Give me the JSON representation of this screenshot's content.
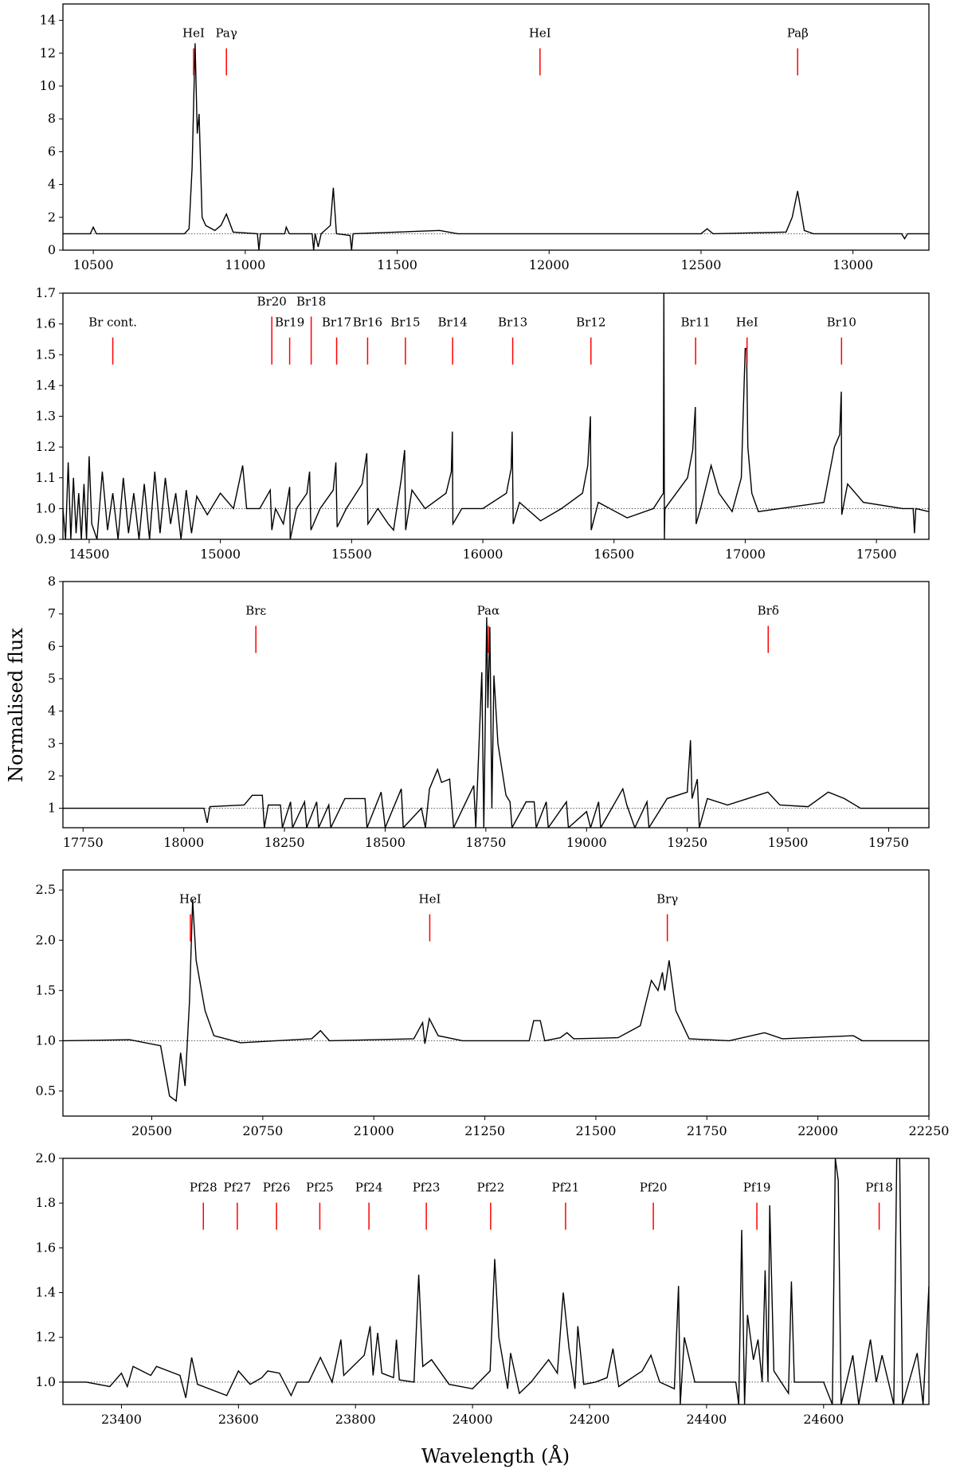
{
  "chart_data": {
    "type": "line",
    "ylabel": "Normalised flux",
    "xlabel": "Wavelength (Å)",
    "colors": {
      "spectrum": "#000000",
      "line_marker": "#ff0000",
      "continuum": "#555555"
    },
    "continuum_level": 1.0,
    "panels": [
      {
        "xlim": [
          10400,
          13250
        ],
        "ylim": [
          0,
          15
        ],
        "xticks": [
          10500,
          11000,
          11500,
          12000,
          12500,
          13000
        ],
        "yticks": [
          0,
          2,
          4,
          6,
          8,
          10,
          12,
          14
        ],
        "markers": [
          {
            "label": "HeI",
            "wavelength": 10830
          },
          {
            "label": "Paγ",
            "wavelength": 10938
          },
          {
            "label": "HeI",
            "wavelength": 11970
          },
          {
            "label": "Paβ",
            "wavelength": 12818
          }
        ],
        "x": [
          10400,
          10490,
          10500,
          10510,
          10800,
          10815,
          10825,
          10835,
          10842,
          10848,
          10858,
          10870,
          10900,
          10920,
          10938,
          10960,
          11040,
          11045,
          11050,
          11130,
          11135,
          11145,
          11220,
          11225,
          11230,
          11240,
          11250,
          11280,
          11290,
          11300,
          11345,
          11350,
          11355,
          11640,
          11700,
          12500,
          12520,
          12540,
          12780,
          12800,
          12818,
          12840,
          12870,
          13160,
          13170,
          13180,
          13250
        ],
        "y": [
          1,
          1,
          1.4,
          1,
          1,
          1.3,
          5,
          12.6,
          7.1,
          8.3,
          2,
          1.5,
          1.2,
          1.5,
          2.2,
          1.1,
          1,
          0,
          1,
          1,
          1.4,
          1,
          1,
          0,
          1,
          0.2,
          1,
          1.5,
          3.8,
          1,
          0.9,
          0,
          1,
          1.2,
          1,
          1,
          1.3,
          1,
          1.1,
          2,
          3.6,
          1.2,
          1,
          1,
          0.7,
          1,
          1
        ]
      },
      {
        "xlim": [
          14400,
          17700
        ],
        "ylim": [
          0.9,
          1.7
        ],
        "xticks": [
          14500,
          15000,
          15500,
          16000,
          16500,
          17000,
          17500
        ],
        "yticks": [
          0.9,
          1.0,
          1.1,
          1.2,
          1.3,
          1.4,
          1.5,
          1.6,
          1.7
        ],
        "markers": [
          {
            "label": "Br cont.",
            "wavelength": 14590
          },
          {
            "label": "Br20",
            "wavelength": 15196
          },
          {
            "label": "Br19",
            "wavelength": 15264
          },
          {
            "label": "Br18",
            "wavelength": 15346
          },
          {
            "label": "Br17",
            "wavelength": 15443
          },
          {
            "label": "Br16",
            "wavelength": 15561
          },
          {
            "label": "Br15",
            "wavelength": 15705
          },
          {
            "label": "Br14",
            "wavelength": 15885
          },
          {
            "label": "Br13",
            "wavelength": 16114
          },
          {
            "label": "Br12",
            "wavelength": 16412
          },
          {
            "label": "Br11",
            "wavelength": 16811
          },
          {
            "label": "HeI",
            "wavelength": 17007
          },
          {
            "label": "Br10",
            "wavelength": 17367
          }
        ],
        "x": [
          14400,
          14410,
          14420,
          14430,
          14440,
          14450,
          14460,
          14470,
          14480,
          14490,
          14500,
          14510,
          14530,
          14550,
          14570,
          14590,
          14610,
          14630,
          14650,
          14670,
          14690,
          14710,
          14730,
          14750,
          14770,
          14790,
          14810,
          14830,
          14850,
          14870,
          14890,
          14910,
          14950,
          15000,
          15050,
          15085,
          15100,
          15150,
          15190,
          15196,
          15210,
          15240,
          15264,
          15266,
          15290,
          15330,
          15340,
          15345,
          15380,
          15430,
          15440,
          15445,
          15480,
          15540,
          15558,
          15562,
          15600,
          15640,
          15660,
          15690,
          15702,
          15706,
          15730,
          15780,
          15860,
          15880,
          15884,
          15886,
          15920,
          16000,
          16090,
          16108,
          16112,
          16116,
          16140,
          16220,
          16300,
          16380,
          16400,
          16410,
          16413,
          16440,
          16550,
          16650,
          16688,
          16690,
          16692,
          16694,
          16780,
          16800,
          16810,
          16813,
          16830,
          16870,
          16900,
          16950,
          16985,
          17000,
          17005,
          17010,
          17025,
          17050,
          17300,
          17340,
          17360,
          17366,
          17368,
          17390,
          17450,
          17600,
          17640,
          17645,
          17650,
          17700
        ],
        "y": [
          1.0,
          0.9,
          1.15,
          0.9,
          1.1,
          0.92,
          1.05,
          0.9,
          1.08,
          0.9,
          1.17,
          0.95,
          0.9,
          1.12,
          0.93,
          1.05,
          0.9,
          1.1,
          0.92,
          1.05,
          0.9,
          1.08,
          0.9,
          1.12,
          0.92,
          1.1,
          0.95,
          1.05,
          0.9,
          1.06,
          0.92,
          1.04,
          0.98,
          1.05,
          1.0,
          1.14,
          1.0,
          1.0,
          1.06,
          0.93,
          1.0,
          0.95,
          1.07,
          0.9,
          1.0,
          1.05,
          1.12,
          0.93,
          1.0,
          1.06,
          1.15,
          0.94,
          1.0,
          1.08,
          1.18,
          0.95,
          1.0,
          0.95,
          0.93,
          1.1,
          1.19,
          0.93,
          1.06,
          1.0,
          1.05,
          1.12,
          1.25,
          0.95,
          1.0,
          1.0,
          1.05,
          1.13,
          1.25,
          0.95,
          1.02,
          0.96,
          1.0,
          1.05,
          1.14,
          1.3,
          0.93,
          1.02,
          0.97,
          1.0,
          1.05,
          1.7,
          0.9,
          1.0,
          1.1,
          1.19,
          1.33,
          0.95,
          1.0,
          1.14,
          1.05,
          0.99,
          1.1,
          1.52,
          1.52,
          1.2,
          1.05,
          0.99,
          1.02,
          1.2,
          1.24,
          1.38,
          0.98,
          1.08,
          1.02,
          1.0,
          1.0,
          0.92,
          1.0,
          0.99
        ]
      },
      {
        "xlim": [
          17700,
          19850
        ],
        "ylim": [
          0.4,
          8
        ],
        "xticks": [
          17750,
          18000,
          18250,
          18500,
          18750,
          19000,
          19250,
          19500,
          19750
        ],
        "yticks": [
          1,
          2,
          3,
          4,
          5,
          6,
          7,
          8
        ],
        "markers": [
          {
            "label": "Brε",
            "wavelength": 18179
          },
          {
            "label": "Paα",
            "wavelength": 18756
          },
          {
            "label": "Brδ",
            "wavelength": 19451
          }
        ],
        "x": [
          17700,
          18050,
          18058,
          18065,
          18150,
          18170,
          18195,
          18200,
          18210,
          18240,
          18245,
          18265,
          18270,
          18300,
          18305,
          18330,
          18335,
          18360,
          18365,
          18400,
          18450,
          18455,
          18490,
          18500,
          18540,
          18545,
          18590,
          18600,
          18610,
          18630,
          18640,
          18660,
          18670,
          18720,
          18725,
          18740,
          18745,
          18752,
          18755,
          18760,
          18765,
          18770,
          18780,
          18800,
          18810,
          18815,
          18850,
          18870,
          18875,
          18900,
          18905,
          18950,
          18955,
          19000,
          19010,
          19030,
          19035,
          19090,
          19100,
          19120,
          19150,
          19155,
          19200,
          19250,
          19258,
          19262,
          19275,
          19280,
          19300,
          19350,
          19400,
          19450,
          19480,
          19550,
          19600,
          19640,
          19680,
          19850
        ],
        "y": [
          1,
          1,
          0.55,
          1.05,
          1.1,
          1.4,
          1.4,
          0.4,
          1.1,
          1.1,
          0.4,
          1.2,
          0.4,
          1.2,
          0.4,
          1.2,
          0.4,
          1.1,
          0.4,
          1.3,
          1.3,
          0.4,
          1.5,
          0.4,
          1.6,
          0.4,
          1.0,
          0.4,
          1.6,
          2.2,
          1.8,
          1.9,
          0.4,
          1.7,
          0.4,
          5.2,
          0.4,
          6.9,
          4.1,
          6.6,
          1,
          5.1,
          3,
          1.4,
          1.2,
          0.4,
          1.2,
          1.2,
          0.4,
          1.2,
          0.4,
          1.2,
          0.4,
          0.9,
          0.4,
          1.2,
          0.4,
          1.6,
          1.1,
          0.4,
          1.2,
          0.4,
          1.3,
          1.5,
          3.1,
          1.3,
          1.9,
          0.4,
          1.3,
          1.1,
          1.3,
          1.5,
          1.1,
          1.05,
          1.5,
          1.3,
          1,
          1
        ]
      },
      {
        "xlim": [
          20300,
          22250
        ],
        "ylim": [
          0.25,
          2.7
        ],
        "xticks": [
          20500,
          20750,
          21000,
          21250,
          21500,
          21750,
          22000,
          22250
        ],
        "yticks": [
          0.5,
          1.0,
          1.5,
          2.0,
          2.5
        ],
        "markers": [
          {
            "label": "HeI",
            "wavelength": 20587
          },
          {
            "label": "HeI",
            "wavelength": 21126
          },
          {
            "label": "Brγ",
            "wavelength": 21661
          }
        ],
        "x": [
          20300,
          20450,
          20520,
          20540,
          20555,
          20565,
          20575,
          20585,
          20592,
          20600,
          20620,
          20640,
          20700,
          20860,
          20880,
          20900,
          21090,
          21110,
          21115,
          21125,
          21145,
          21200,
          21350,
          21360,
          21375,
          21385,
          21420,
          21435,
          21450,
          21550,
          21600,
          21625,
          21640,
          21650,
          21655,
          21665,
          21680,
          21710,
          21800,
          21880,
          21920,
          22080,
          22100,
          22250
        ],
        "y": [
          1,
          1.01,
          0.95,
          0.45,
          0.4,
          0.88,
          0.55,
          1.4,
          2.4,
          1.8,
          1.3,
          1.05,
          0.98,
          1.02,
          1.1,
          1.0,
          1.02,
          1.18,
          0.97,
          1.22,
          1.05,
          1.0,
          1.0,
          1.2,
          1.2,
          1.0,
          1.03,
          1.08,
          1.02,
          1.03,
          1.15,
          1.6,
          1.5,
          1.68,
          1.5,
          1.8,
          1.3,
          1.02,
          1.0,
          1.08,
          1.02,
          1.05,
          1.0,
          1.0
        ]
      },
      {
        "xlim": [
          23300,
          24780
        ],
        "ylim": [
          0.9,
          2.0
        ],
        "xticks": [
          23400,
          23600,
          23800,
          24000,
          24200,
          24400,
          24600
        ],
        "yticks": [
          1.0,
          1.2,
          1.4,
          1.6,
          1.8,
          2.0
        ],
        "markers": [
          {
            "label": "Pf28",
            "wavelength": 23540
          },
          {
            "label": "Pf27",
            "wavelength": 23598
          },
          {
            "label": "Pf26",
            "wavelength": 23665
          },
          {
            "label": "Pf25",
            "wavelength": 23739
          },
          {
            "label": "Pf24",
            "wavelength": 23823
          },
          {
            "label": "Pf23",
            "wavelength": 23921
          },
          {
            "label": "Pf22",
            "wavelength": 24031
          },
          {
            "label": "Pf21",
            "wavelength": 24159
          },
          {
            "label": "Pf20",
            "wavelength": 24309
          },
          {
            "label": "Pf19",
            "wavelength": 24486
          },
          {
            "label": "Pf18",
            "wavelength": 24695
          }
        ],
        "x": [
          23300,
          23340,
          23380,
          23400,
          23410,
          23420,
          23450,
          23460,
          23500,
          23510,
          23520,
          23530,
          23580,
          23600,
          23620,
          23640,
          23650,
          23670,
          23690,
          23700,
          23720,
          23740,
          23760,
          23775,
          23780,
          23815,
          23825,
          23830,
          23838,
          23845,
          23865,
          23870,
          23875,
          23900,
          23908,
          23915,
          23930,
          23960,
          24000,
          24030,
          24038,
          24045,
          24060,
          24065,
          24080,
          24100,
          24130,
          24145,
          24155,
          24165,
          24175,
          24180,
          24190,
          24210,
          24230,
          24240,
          24250,
          24290,
          24305,
          24320,
          24345,
          24352,
          24355,
          24362,
          24380,
          24450,
          24455,
          24460,
          24465,
          24470,
          24480,
          24488,
          24495,
          24500,
          24505,
          24508,
          24515,
          24540,
          24545,
          24550,
          24600,
          24615,
          24620,
          24625,
          24630,
          24650,
          24660,
          24680,
          24690,
          24700,
          24720,
          24725,
          24730,
          24735,
          24760,
          24770,
          24780
        ],
        "y": [
          1.0,
          1.0,
          0.98,
          1.04,
          0.98,
          1.07,
          1.03,
          1.07,
          1.03,
          0.93,
          1.11,
          0.99,
          0.94,
          1.05,
          0.99,
          1.02,
          1.05,
          1.04,
          0.94,
          1.0,
          1.0,
          1.11,
          1.0,
          1.19,
          1.03,
          1.12,
          1.25,
          1.03,
          1.22,
          1.04,
          1.02,
          1.19,
          1.01,
          1.0,
          1.48,
          1.07,
          1.1,
          0.99,
          0.97,
          1.05,
          1.55,
          1.2,
          0.97,
          1.13,
          0.95,
          1.0,
          1.1,
          1.04,
          1.4,
          1.15,
          0.97,
          1.25,
          0.99,
          1.0,
          1.02,
          1.15,
          0.98,
          1.05,
          1.12,
          1.0,
          0.97,
          1.43,
          0.9,
          1.2,
          1.0,
          1.0,
          0.9,
          1.68,
          0.9,
          1.3,
          1.1,
          1.19,
          1.0,
          1.5,
          1.0,
          1.79,
          1.05,
          0.95,
          1.45,
          1.0,
          1.0,
          0.9,
          2.0,
          1.9,
          0.9,
          1.12,
          0.9,
          1.19,
          1.0,
          1.12,
          0.9,
          2.0,
          2.0,
          0.9,
          1.13,
          0.9,
          1.43
        ]
      }
    ]
  }
}
